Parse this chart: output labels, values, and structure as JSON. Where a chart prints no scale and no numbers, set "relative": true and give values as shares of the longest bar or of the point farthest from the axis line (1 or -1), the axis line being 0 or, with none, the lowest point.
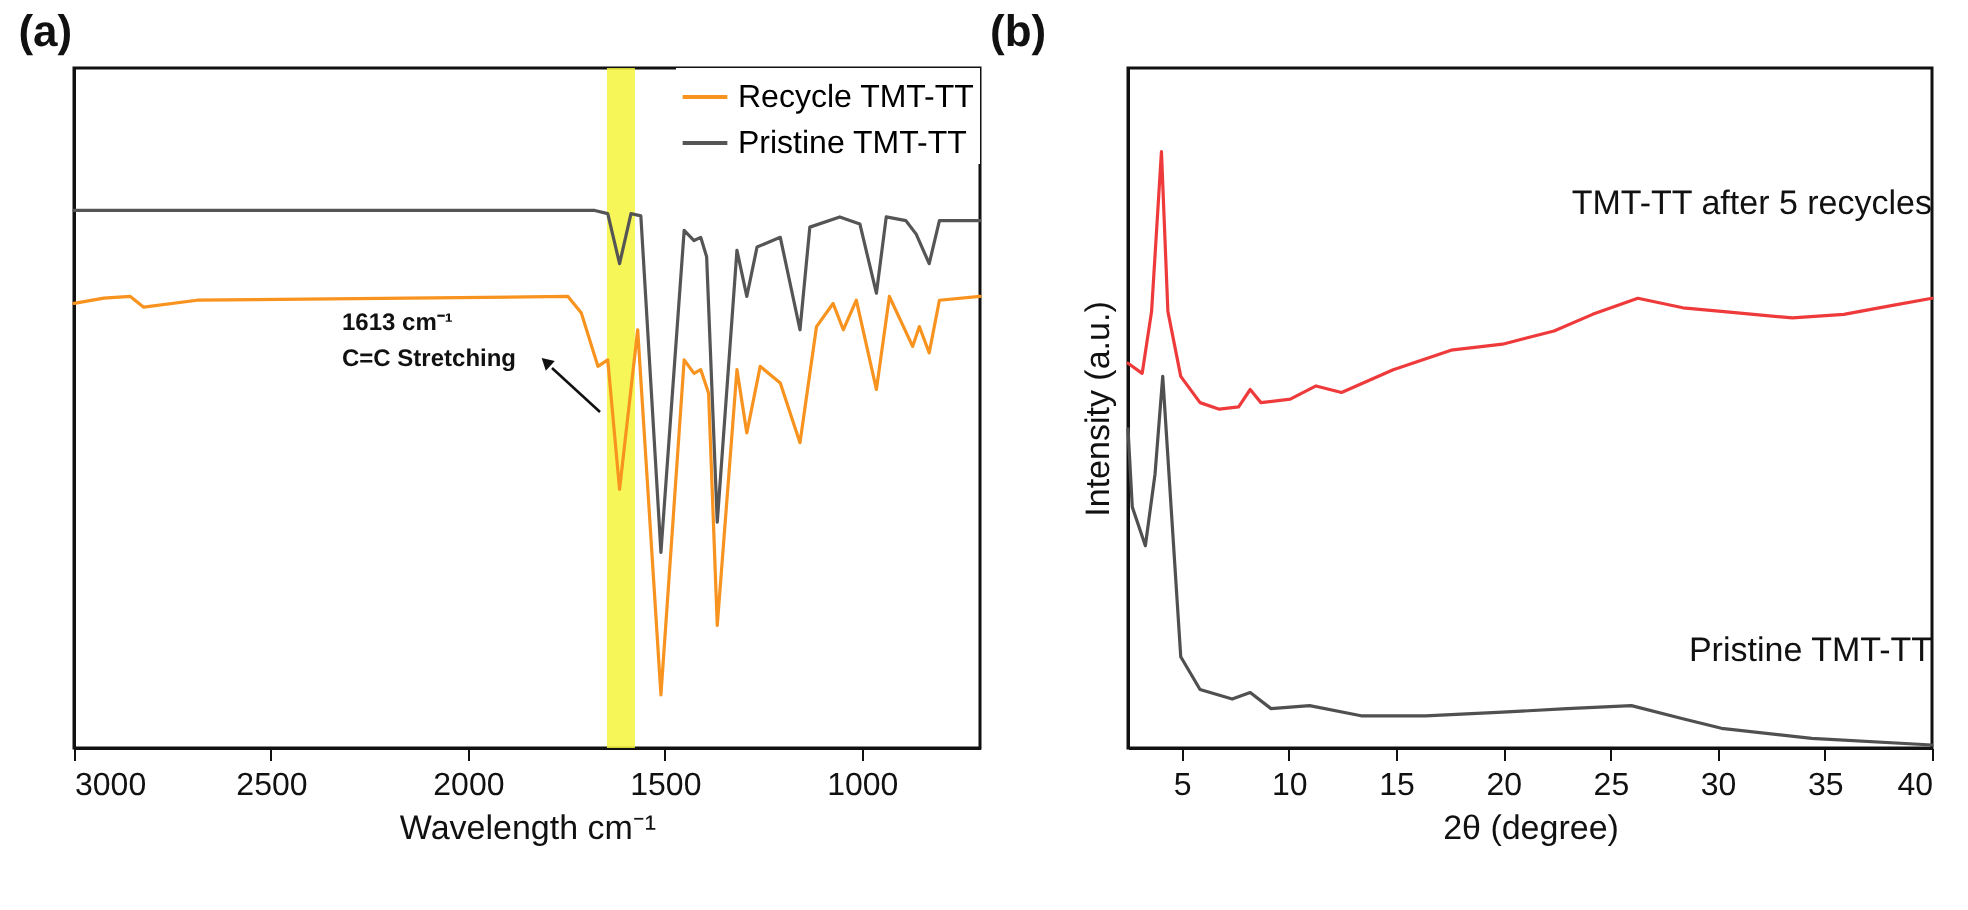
{
  "chart_data": [
    {
      "type": "line",
      "title": "(a)",
      "xlabel": "Wavelength cm⁻¹",
      "relative": true,
      "xlim": [
        3000,
        700
      ],
      "xticks": [
        3000,
        2500,
        2000,
        1500,
        1000
      ],
      "legend": "top right",
      "grid": false,
      "series": [
        {
          "name": "Recycle TMT-TT",
          "color": "#f7931e",
          "x": [
            3000,
            2924,
            2857,
            2823,
            2688,
            1746,
            1712,
            1670,
            1645,
            1615,
            1569,
            1510,
            1451,
            1426,
            1409,
            1389,
            1367,
            1317,
            1292,
            1258,
            1207,
            1157,
            1115,
            1073,
            1047,
            1014,
            963,
            930,
            871,
            854,
            829,
            803,
            700
          ],
          "values": [
            0.827,
            0.837,
            0.84,
            0.82,
            0.833,
            0.84,
            0.809,
            0.71,
            0.722,
            0.481,
            0.778,
            0.099,
            0.722,
            0.697,
            0.704,
            0.66,
            0.228,
            0.704,
            0.586,
            0.71,
            0.679,
            0.568,
            0.784,
            0.827,
            0.778,
            0.833,
            0.667,
            0.84,
            0.747,
            0.784,
            0.735,
            0.833,
            0.84
          ]
        },
        {
          "name": "Pristine TMT-TT",
          "color": "#555555",
          "x": [
            3000,
            1678,
            1645,
            1615,
            1586,
            1561,
            1510,
            1451,
            1426,
            1409,
            1394,
            1367,
            1317,
            1292,
            1266,
            1207,
            1157,
            1132,
            1056,
            1005,
            963,
            938,
            888,
            862,
            829,
            803,
            700
          ],
          "values": [
            1.0,
            1.0,
            0.994,
            0.901,
            0.994,
            0.99,
            0.364,
            0.963,
            0.944,
            0.95,
            0.914,
            0.42,
            0.926,
            0.84,
            0.932,
            0.95,
            0.778,
            0.969,
            0.988,
            0.975,
            0.846,
            0.988,
            0.981,
            0.956,
            0.901,
            0.981,
            0.981
          ]
        }
      ],
      "bands": [
        {
          "axis": "x",
          "from": 1647,
          "to": 1576,
          "color": "#f5f53c"
        }
      ],
      "annotations": [
        "1613 cm⁻¹",
        "C=C Stretching"
      ]
    },
    {
      "type": "line",
      "title": "(b)",
      "xlabel": "2θ (degree)",
      "ylabel": "Intensity (a.u.)",
      "relative": true,
      "xlim": [
        2.5,
        40
      ],
      "xticks": [
        5,
        10,
        15,
        20,
        25,
        30,
        35,
        40
      ],
      "grid": false,
      "series": [
        {
          "name": "TMT-TT after 5 recycles",
          "color": "#ee3a3a",
          "x": [
            2.5,
            3.16,
            3.6,
            4.06,
            4.36,
            4.96,
            5.86,
            6.76,
            7.66,
            8.2,
            8.7,
            10.07,
            11.27,
            12.46,
            14.87,
            17.57,
            19.97,
            22.37,
            24.17,
            26.28,
            28.38,
            30.18,
            33.49,
            35.89,
            38.29,
            40
          ],
          "values": [
            0.645,
            0.628,
            0.732,
            1.0,
            0.732,
            0.623,
            0.579,
            0.568,
            0.572,
            0.601,
            0.579,
            0.585,
            0.607,
            0.596,
            0.634,
            0.667,
            0.677,
            0.699,
            0.727,
            0.754,
            0.738,
            0.732,
            0.721,
            0.727,
            0.743,
            0.754
          ]
        },
        {
          "name": "Pristine TMT-TT",
          "color": "#505050",
          "x": [
            2.5,
            2.7,
            3.31,
            3.76,
            4.12,
            4.51,
            4.96,
            5.86,
            7.36,
            8.2,
            9.17,
            10.97,
            13.37,
            16.37,
            19.97,
            22.98,
            25.98,
            28.38,
            30.18,
            34.39,
            40
          ],
          "values": [
            0.535,
            0.404,
            0.339,
            0.459,
            0.623,
            0.404,
            0.153,
            0.098,
            0.082,
            0.093,
            0.066,
            0.071,
            0.054,
            0.054,
            0.06,
            0.066,
            0.071,
            0.049,
            0.033,
            0.016,
            0.005
          ]
        }
      ]
    }
  ]
}
